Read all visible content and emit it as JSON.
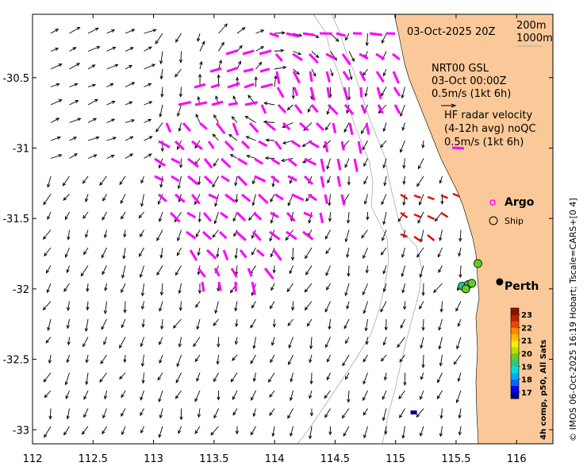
{
  "map": {
    "title_datetime": "03-Oct-2025 20Z",
    "isobath_labels": [
      "200m",
      "1000m"
    ],
    "x_ticks": [
      "112",
      "112.5",
      "113",
      "113.5",
      "114",
      "114.5",
      "115",
      "115.5",
      "116"
    ],
    "y_ticks": [
      "-30.5",
      "-31",
      "-31.5",
      "-32",
      "-32.5",
      "-33"
    ],
    "x_ticks_num": [
      112,
      112.5,
      113,
      113.5,
      114,
      114.5,
      115,
      115.5,
      116
    ],
    "y_ticks_num": [
      -30.5,
      -31,
      -31.5,
      -32,
      -32.5,
      -33
    ],
    "extent": {
      "lon_min": 112,
      "lon_max": 116.3,
      "lat_min": -33.1,
      "lat_max": -30.05
    },
    "colors": {
      "land": "#FBC999",
      "hf_vector": "#FF00FF",
      "alt_vector": "#DD1100",
      "model_vector": "#000000",
      "isobath": "#AAAAAA",
      "ship_marker": "#000000"
    }
  },
  "model_legend": {
    "line1": "NRT00 GSL",
    "line2": "03-Oct 00:00Z",
    "line3": "0.5m/s (1kt 6h)"
  },
  "hf_legend": {
    "line1": "HF radar velocity",
    "line2": "(4-12h avg) noQC",
    "line3": "0.5m/s (1kt 6h)"
  },
  "markers": {
    "argo_label": "Argo",
    "ship_label": "Ship",
    "city_label": "Perth"
  },
  "colorbar": {
    "title": "4h comp, p50, All Sats",
    "ticks": [
      "23",
      "22",
      "21",
      "20",
      "19",
      "18",
      "17"
    ],
    "range": [
      16.5,
      23.5
    ],
    "colors": [
      "#00008B",
      "#0000FF",
      "#0066FF",
      "#00AAFF",
      "#00DDDD",
      "#22CC88",
      "#66CC22",
      "#BBDD00",
      "#FFEE00",
      "#FFBB00",
      "#FF8800",
      "#EE4400",
      "#BB2200",
      "#881100"
    ]
  },
  "sst_points": [
    {
      "lon": 115.55,
      "lat": -31.98,
      "temp": 19.3
    },
    {
      "lon": 115.6,
      "lat": -31.97,
      "temp": 19.0
    },
    {
      "lon": 115.63,
      "lat": -31.96,
      "temp": 19.8
    },
    {
      "lon": 115.58,
      "lat": -32.0,
      "temp": 19.5
    },
    {
      "lon": 115.68,
      "lat": -31.82,
      "temp": 19.6
    },
    {
      "lon": 115.15,
      "lat": -32.88,
      "temp": 16.5
    }
  ],
  "perth": {
    "lon": 115.86,
    "lat": -31.95
  },
  "credit": "© IMOS 06-Oct-2025 16:19 Hobart; Tscale=CARS+[0 4]"
}
